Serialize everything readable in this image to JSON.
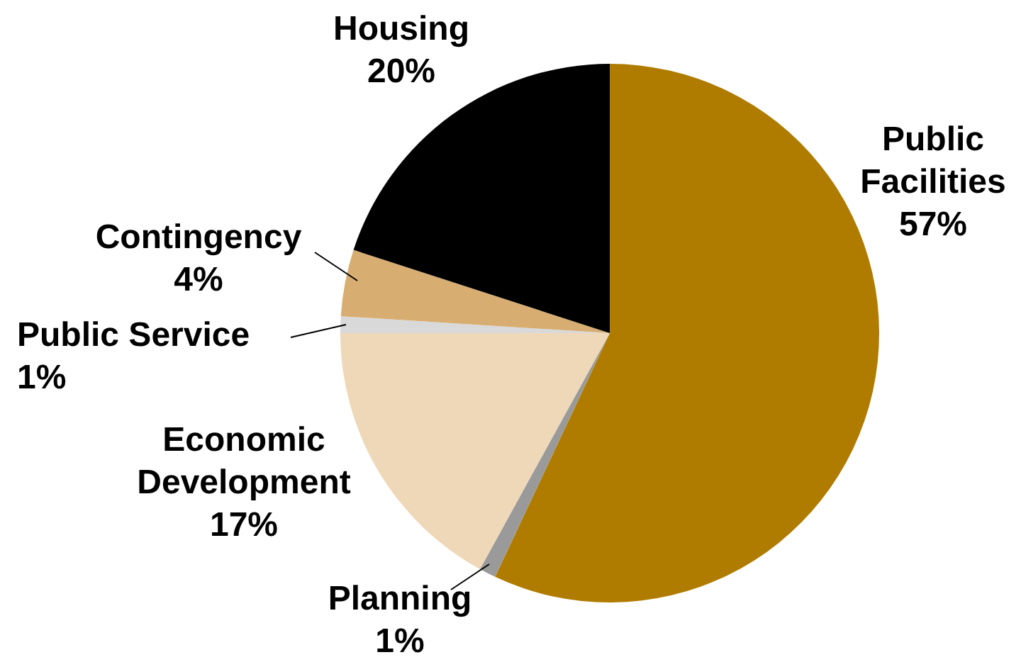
{
  "chart_data": {
    "type": "pie",
    "categories": [
      "Public Facilities",
      "Planning",
      "Economic Development",
      "Public Service",
      "Contingency",
      "Housing"
    ],
    "values": [
      57,
      1,
      17,
      1,
      4,
      20
    ],
    "value_labels": [
      "57%",
      "1%",
      "17%",
      "1%",
      "4%",
      "20%"
    ],
    "colors": [
      "#b07c00",
      "#9a9a9a",
      "#efd8b8",
      "#d9d9d9",
      "#d8ad72",
      "#000000"
    ],
    "legend": false
  }
}
